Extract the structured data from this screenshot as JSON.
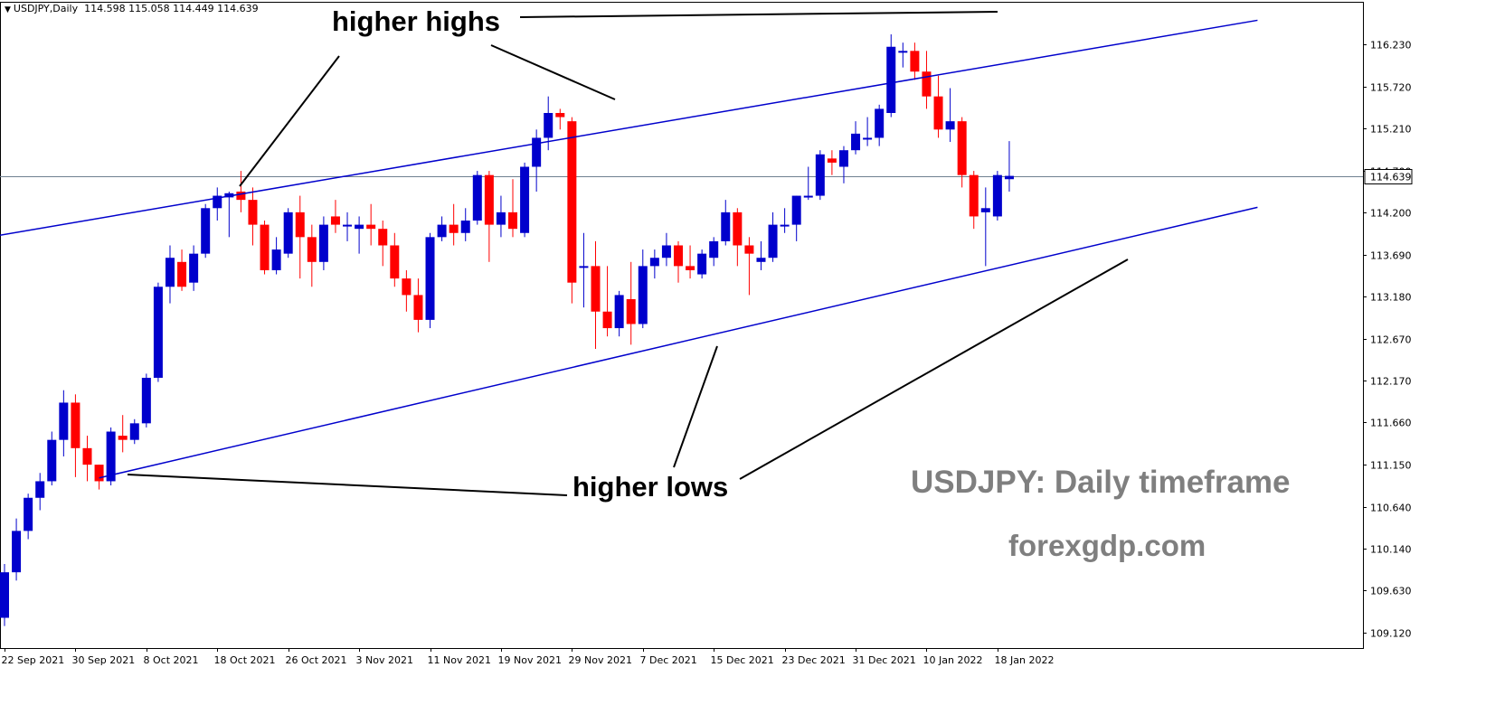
{
  "header": {
    "symbol_label": "USDJPY,Daily",
    "ohlc_values": "114.598 115.058 114.449 114.639"
  },
  "annotations": {
    "highs_label": "higher highs",
    "lows_label": "higher lows"
  },
  "watermark": {
    "title": "USDJPY: Daily timeframe",
    "site": "forexgdp.com"
  },
  "colors": {
    "bull": "#0000cc",
    "bear": "#ff0000",
    "trendline": "#0000cc",
    "annotation_line": "#000000",
    "price_line": "#6f8090"
  },
  "chart_data": {
    "type": "candlestick",
    "timeframe": "Daily",
    "symbol": "USDJPY",
    "price_ticks": [
      116.23,
      115.72,
      115.21,
      114.7,
      114.2,
      113.69,
      113.18,
      112.67,
      112.17,
      111.66,
      111.15,
      110.64,
      110.14,
      109.63,
      109.12
    ],
    "price_tick_labels": [
      "116.230",
      "115.720",
      "115.210",
      "114.700",
      "114.200",
      "113.690",
      "113.180",
      "112.670",
      "112.170",
      "111.660",
      "111.150",
      "110.640",
      "110.140",
      "109.630",
      "109.120"
    ],
    "date_labels": [
      "22 Sep 2021",
      "30 Sep 2021",
      "8 Oct 2021",
      "18 Oct 2021",
      "26 Oct 2021",
      "3 Nov 2021",
      "11 Nov 2021",
      "19 Nov 2021",
      "29 Nov 2021",
      "7 Dec 2021",
      "15 Dec 2021",
      "23 Dec 2021",
      "31 Dec 2021",
      "10 Jan 2022",
      "18 Jan 2022"
    ],
    "date_label_candle_index": [
      0,
      6,
      12,
      18,
      24,
      30,
      36,
      42,
      48,
      54,
      60,
      66,
      72,
      78,
      84
    ],
    "ylim": [
      109.0,
      116.55
    ],
    "last_price": 114.639,
    "last_price_label": "114.639",
    "candles": [
      {
        "o": 109.3,
        "h": 109.95,
        "l": 109.2,
        "c": 109.85
      },
      {
        "o": 109.85,
        "h": 110.5,
        "l": 109.75,
        "c": 110.35
      },
      {
        "o": 110.35,
        "h": 110.8,
        "l": 110.25,
        "c": 110.75
      },
      {
        "o": 110.75,
        "h": 111.05,
        "l": 110.6,
        "c": 110.95
      },
      {
        "o": 110.95,
        "h": 111.55,
        "l": 110.9,
        "c": 111.45
      },
      {
        "o": 111.45,
        "h": 112.05,
        "l": 111.25,
        "c": 111.9
      },
      {
        "o": 111.9,
        "h": 112.0,
        "l": 111.0,
        "c": 111.35
      },
      {
        "o": 111.35,
        "h": 111.5,
        "l": 110.95,
        "c": 111.15
      },
      {
        "o": 111.15,
        "h": 111.15,
        "l": 110.85,
        "c": 110.95
      },
      {
        "o": 110.95,
        "h": 111.6,
        "l": 110.9,
        "c": 111.55
      },
      {
        "o": 111.5,
        "h": 111.75,
        "l": 111.3,
        "c": 111.45
      },
      {
        "o": 111.45,
        "h": 111.7,
        "l": 111.4,
        "c": 111.65
      },
      {
        "o": 111.65,
        "h": 112.25,
        "l": 111.6,
        "c": 112.2
      },
      {
        "o": 112.2,
        "h": 113.35,
        "l": 112.15,
        "c": 113.3
      },
      {
        "o": 113.3,
        "h": 113.8,
        "l": 113.1,
        "c": 113.65
      },
      {
        "o": 113.6,
        "h": 113.75,
        "l": 113.25,
        "c": 113.3
      },
      {
        "o": 113.35,
        "h": 113.8,
        "l": 113.25,
        "c": 113.7
      },
      {
        "o": 113.7,
        "h": 114.3,
        "l": 113.65,
        "c": 114.25
      },
      {
        "o": 114.25,
        "h": 114.5,
        "l": 114.1,
        "c": 114.4
      },
      {
        "o": 114.38,
        "h": 114.45,
        "l": 113.9,
        "c": 114.43
      },
      {
        "o": 114.45,
        "h": 114.7,
        "l": 114.2,
        "c": 114.35
      },
      {
        "o": 114.35,
        "h": 114.5,
        "l": 113.8,
        "c": 114.05
      },
      {
        "o": 114.05,
        "h": 114.1,
        "l": 113.45,
        "c": 113.5
      },
      {
        "o": 113.5,
        "h": 113.9,
        "l": 113.45,
        "c": 113.75
      },
      {
        "o": 113.7,
        "h": 114.25,
        "l": 113.65,
        "c": 114.2
      },
      {
        "o": 114.2,
        "h": 114.4,
        "l": 113.4,
        "c": 113.9
      },
      {
        "o": 113.9,
        "h": 114.05,
        "l": 113.3,
        "c": 113.6
      },
      {
        "o": 113.6,
        "h": 114.15,
        "l": 113.5,
        "c": 114.05
      },
      {
        "o": 114.15,
        "h": 114.35,
        "l": 113.95,
        "c": 114.05
      },
      {
        "o": 114.05,
        "h": 114.2,
        "l": 113.85,
        "c": 114.05
      },
      {
        "o": 114.0,
        "h": 114.15,
        "l": 113.7,
        "c": 114.05
      },
      {
        "o": 114.05,
        "h": 114.3,
        "l": 113.8,
        "c": 114.0
      },
      {
        "o": 114.0,
        "h": 114.1,
        "l": 113.55,
        "c": 113.8
      },
      {
        "o": 113.8,
        "h": 113.95,
        "l": 113.3,
        "c": 113.4
      },
      {
        "o": 113.4,
        "h": 113.5,
        "l": 113.0,
        "c": 113.2
      },
      {
        "o": 113.2,
        "h": 113.4,
        "l": 112.75,
        "c": 112.9
      },
      {
        "o": 112.9,
        "h": 113.95,
        "l": 112.8,
        "c": 113.9
      },
      {
        "o": 113.9,
        "h": 114.15,
        "l": 113.85,
        "c": 114.05
      },
      {
        "o": 114.05,
        "h": 114.3,
        "l": 113.8,
        "c": 113.95
      },
      {
        "o": 113.95,
        "h": 114.25,
        "l": 113.85,
        "c": 114.1
      },
      {
        "o": 114.1,
        "h": 114.7,
        "l": 114.05,
        "c": 114.65
      },
      {
        "o": 114.65,
        "h": 114.7,
        "l": 113.6,
        "c": 114.05
      },
      {
        "o": 114.05,
        "h": 114.4,
        "l": 113.9,
        "c": 114.2
      },
      {
        "o": 114.2,
        "h": 114.6,
        "l": 113.9,
        "c": 114.0
      },
      {
        "o": 113.95,
        "h": 114.8,
        "l": 113.9,
        "c": 114.75
      },
      {
        "o": 114.75,
        "h": 115.2,
        "l": 114.45,
        "c": 115.1
      },
      {
        "o": 115.1,
        "h": 115.6,
        "l": 114.95,
        "c": 115.4
      },
      {
        "o": 115.4,
        "h": 115.45,
        "l": 115.2,
        "c": 115.35
      },
      {
        "o": 115.3,
        "h": 115.35,
        "l": 113.1,
        "c": 113.35
      },
      {
        "o": 113.55,
        "h": 113.95,
        "l": 113.05,
        "c": 113.55
      },
      {
        "o": 113.55,
        "h": 113.85,
        "l": 112.55,
        "c": 113.0
      },
      {
        "o": 113.0,
        "h": 113.55,
        "l": 112.7,
        "c": 112.8
      },
      {
        "o": 112.8,
        "h": 113.25,
        "l": 112.7,
        "c": 113.2
      },
      {
        "o": 113.15,
        "h": 113.6,
        "l": 112.6,
        "c": 112.85
      },
      {
        "o": 112.85,
        "h": 113.75,
        "l": 112.8,
        "c": 113.55
      },
      {
        "o": 113.55,
        "h": 113.75,
        "l": 113.4,
        "c": 113.65
      },
      {
        "o": 113.65,
        "h": 113.95,
        "l": 113.55,
        "c": 113.8
      },
      {
        "o": 113.8,
        "h": 113.85,
        "l": 113.35,
        "c": 113.55
      },
      {
        "o": 113.55,
        "h": 113.8,
        "l": 113.4,
        "c": 113.5
      },
      {
        "o": 113.45,
        "h": 113.75,
        "l": 113.4,
        "c": 113.7
      },
      {
        "o": 113.65,
        "h": 113.9,
        "l": 113.55,
        "c": 113.85
      },
      {
        "o": 113.85,
        "h": 114.35,
        "l": 113.8,
        "c": 114.2
      },
      {
        "o": 114.2,
        "h": 114.25,
        "l": 113.55,
        "c": 113.8
      },
      {
        "o": 113.8,
        "h": 113.9,
        "l": 113.2,
        "c": 113.7
      },
      {
        "o": 113.6,
        "h": 113.85,
        "l": 113.5,
        "c": 113.65
      },
      {
        "o": 113.65,
        "h": 114.2,
        "l": 113.6,
        "c": 114.05
      },
      {
        "o": 114.05,
        "h": 114.25,
        "l": 113.95,
        "c": 114.05
      },
      {
        "o": 114.05,
        "h": 114.4,
        "l": 113.85,
        "c": 114.4
      },
      {
        "o": 114.4,
        "h": 114.75,
        "l": 114.35,
        "c": 114.4
      },
      {
        "o": 114.4,
        "h": 114.95,
        "l": 114.35,
        "c": 114.9
      },
      {
        "o": 114.85,
        "h": 114.95,
        "l": 114.65,
        "c": 114.8
      },
      {
        "o": 114.75,
        "h": 115.0,
        "l": 114.55,
        "c": 114.95
      },
      {
        "o": 114.95,
        "h": 115.3,
        "l": 114.9,
        "c": 115.15
      },
      {
        "o": 115.1,
        "h": 115.35,
        "l": 115.0,
        "c": 115.1
      },
      {
        "o": 115.1,
        "h": 115.5,
        "l": 115.0,
        "c": 115.45
      },
      {
        "o": 115.4,
        "h": 116.35,
        "l": 115.35,
        "c": 116.2
      },
      {
        "o": 116.15,
        "h": 116.25,
        "l": 115.95,
        "c": 116.15
      },
      {
        "o": 116.15,
        "h": 116.25,
        "l": 115.8,
        "c": 115.9
      },
      {
        "o": 115.9,
        "h": 116.15,
        "l": 115.45,
        "c": 115.6
      },
      {
        "o": 115.6,
        "h": 115.85,
        "l": 115.1,
        "c": 115.2
      },
      {
        "o": 115.2,
        "h": 115.7,
        "l": 115.05,
        "c": 115.3
      },
      {
        "o": 115.3,
        "h": 115.35,
        "l": 114.5,
        "c": 114.65
      },
      {
        "o": 114.65,
        "h": 114.7,
        "l": 114.0,
        "c": 114.15
      },
      {
        "o": 114.2,
        "h": 114.5,
        "l": 113.55,
        "c": 114.25
      },
      {
        "o": 114.15,
        "h": 114.7,
        "l": 114.1,
        "c": 114.65
      },
      {
        "o": 114.6,
        "h": 115.06,
        "l": 114.45,
        "c": 114.64
      }
    ],
    "trendlines": [
      {
        "role": "upper-channel",
        "from": {
          "idx": -0.5,
          "price": 113.92
        },
        "to": {
          "idx": 106,
          "price": 116.52
        }
      },
      {
        "role": "lower-channel",
        "from": {
          "idx": 8,
          "price": 110.99
        },
        "to": {
          "idx": 106,
          "price": 114.26
        }
      }
    ]
  }
}
